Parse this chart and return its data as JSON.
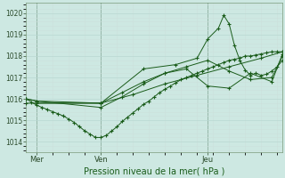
{
  "bg_color": "#cde8e2",
  "grid_major_color": "#b8d8d2",
  "grid_minor_color": "#cce0dc",
  "line_color": "#1a5c1a",
  "title": "Pression niveau de la mer( hPa )",
  "ylabel_ticks": [
    1014,
    1015,
    1016,
    1017,
    1018,
    1019,
    1020
  ],
  "xlim": [
    0,
    96
  ],
  "ylim": [
    1013.5,
    1020.5
  ],
  "x_ticks": [
    4,
    28,
    68
  ],
  "x_tick_labels": [
    "Mer",
    "Ven",
    "Jeu"
  ],
  "vlines": [
    4,
    28,
    68
  ],
  "series": [
    {
      "x": [
        0,
        2,
        4,
        6,
        8,
        10,
        12,
        14,
        16,
        18,
        20,
        22,
        24,
        26,
        28,
        30,
        32,
        34,
        36,
        38,
        40,
        42,
        44,
        46,
        48,
        50,
        52,
        54,
        56,
        58,
        60,
        62,
        64,
        66,
        68,
        70,
        72,
        74,
        76,
        78,
        80,
        82,
        84,
        86,
        88,
        90,
        92,
        94,
        96
      ],
      "y": [
        1016.0,
        1015.85,
        1015.7,
        1015.6,
        1015.5,
        1015.4,
        1015.3,
        1015.2,
        1015.05,
        1014.9,
        1014.7,
        1014.5,
        1014.35,
        1014.2,
        1014.2,
        1014.3,
        1014.5,
        1014.7,
        1014.95,
        1015.15,
        1015.35,
        1015.55,
        1015.75,
        1015.9,
        1016.1,
        1016.3,
        1016.45,
        1016.6,
        1016.75,
        1016.9,
        1017.0,
        1017.1,
        1017.2,
        1017.3,
        1017.4,
        1017.5,
        1017.6,
        1017.7,
        1017.8,
        1017.85,
        1017.9,
        1018.0,
        1018.0,
        1018.05,
        1018.1,
        1018.15,
        1018.2,
        1018.2,
        1018.2
      ]
    },
    {
      "x": [
        0,
        28,
        40,
        52,
        64,
        76,
        88,
        96
      ],
      "y": [
        1015.8,
        1015.8,
        1016.2,
        1016.7,
        1017.1,
        1017.5,
        1017.9,
        1018.2
      ]
    },
    {
      "x": [
        0,
        4,
        28,
        36,
        44,
        52,
        60,
        68,
        76,
        84,
        92,
        96
      ],
      "y": [
        1016.0,
        1015.9,
        1015.8,
        1016.3,
        1016.8,
        1017.2,
        1017.5,
        1017.8,
        1017.3,
        1016.9,
        1017.0,
        1018.0
      ]
    },
    {
      "x": [
        0,
        4,
        28,
        36,
        44,
        52,
        60,
        68,
        76,
        84,
        92,
        96
      ],
      "y": [
        1016.0,
        1015.9,
        1015.6,
        1016.1,
        1016.7,
        1017.2,
        1017.4,
        1016.6,
        1016.5,
        1017.2,
        1016.8,
        1018.1
      ]
    },
    {
      "x": [
        4,
        28,
        44,
        56,
        64,
        68,
        72,
        74,
        76,
        78,
        80,
        82,
        84,
        86,
        88,
        90,
        92,
        94,
        96
      ],
      "y": [
        1015.8,
        1015.8,
        1017.4,
        1017.6,
        1017.9,
        1018.8,
        1019.3,
        1019.9,
        1019.5,
        1018.5,
        1017.8,
        1017.35,
        1017.1,
        1017.2,
        1017.1,
        1017.15,
        1017.3,
        1017.5,
        1017.8
      ]
    }
  ]
}
